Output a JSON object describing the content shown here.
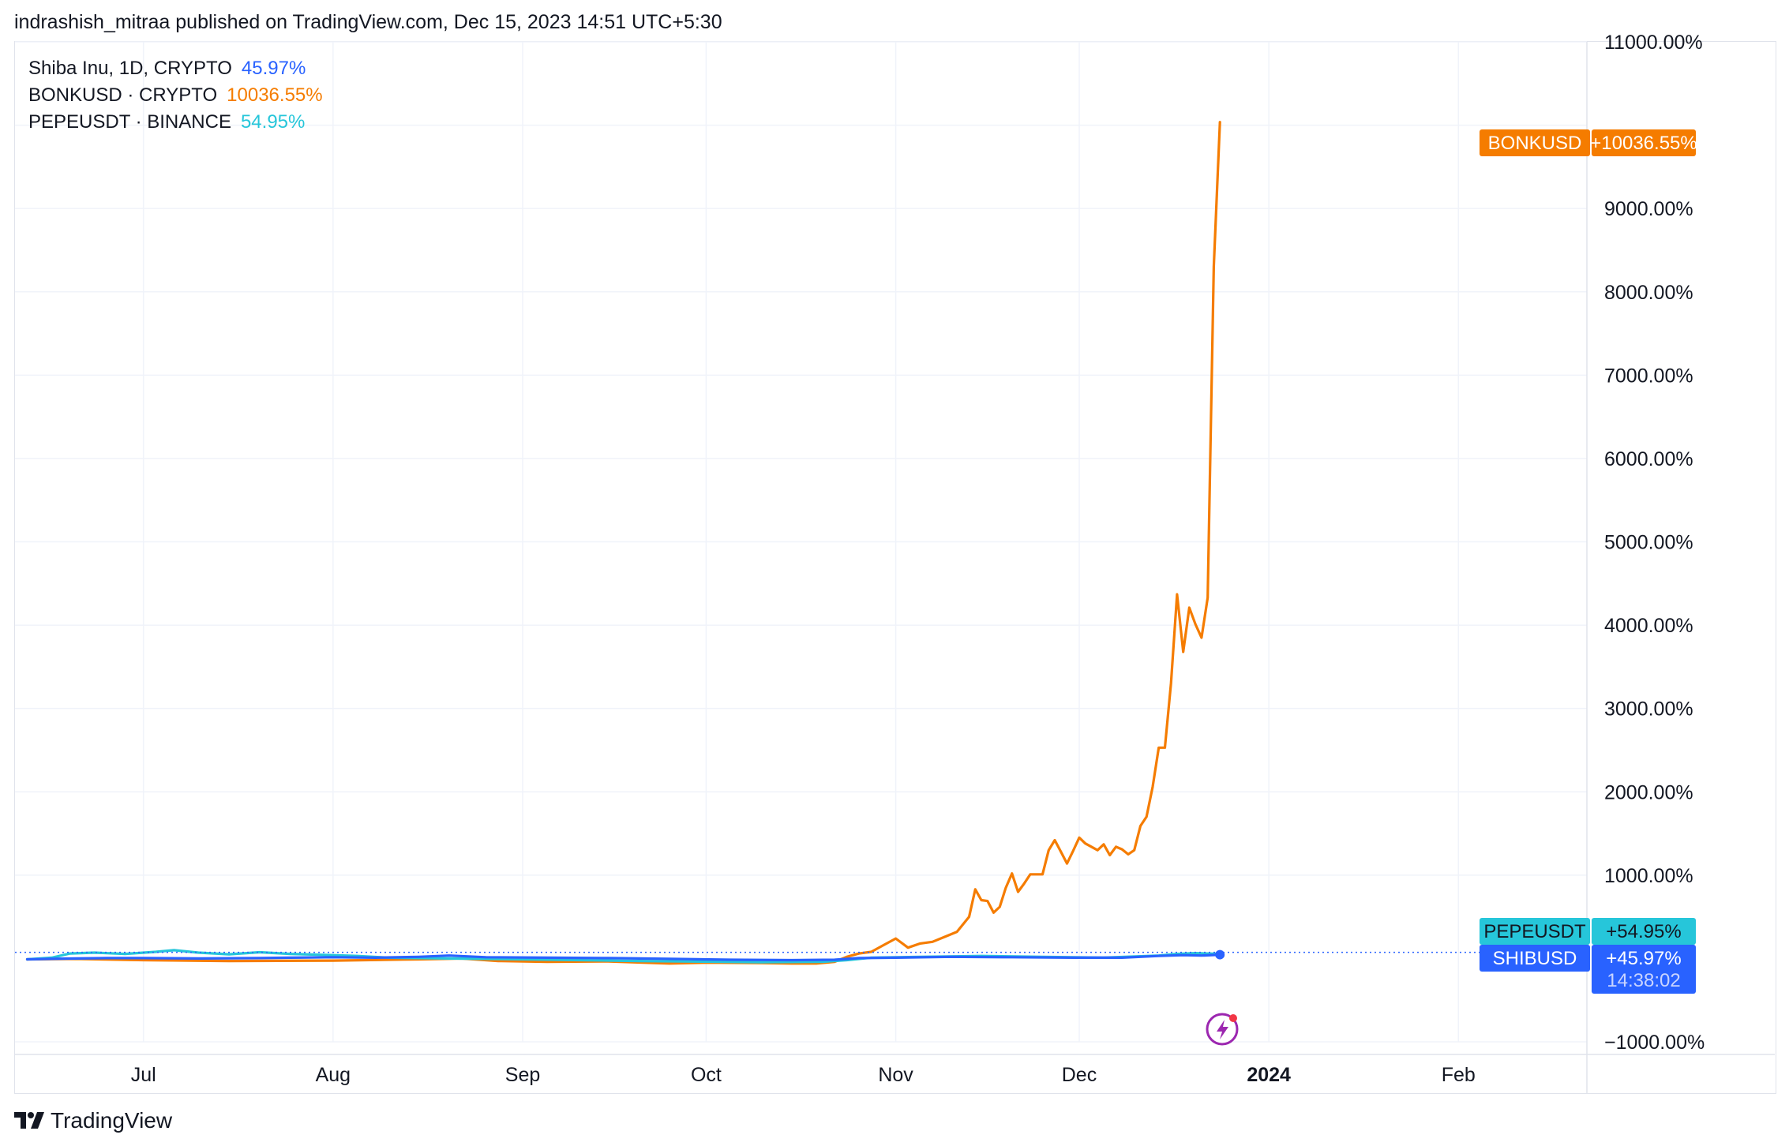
{
  "header": {
    "published_line": "indrashish_mitraa published on TradingView.com, Dec 15, 2023 14:51 UTC+5:30"
  },
  "legend": [
    {
      "label": "Shiba Inu, 1D, CRYPTO",
      "value": "45.97%",
      "color": "#2962ff"
    },
    {
      "label": "BONKUSD · CRYPTO",
      "value": "10036.55%",
      "color": "#f57c00"
    },
    {
      "label": "PEPEUSDT · BINANCE",
      "value": "54.95%",
      "color": "#26c6da"
    }
  ],
  "price_labels": {
    "bonk": {
      "name": "BONKUSD",
      "value": "+10036.55%",
      "color": "#f57c00"
    },
    "pepe": {
      "name": "PEPEUSDT",
      "value": "+54.95%",
      "color": "#26c6da"
    },
    "shib": {
      "name": "SHIBUSD",
      "value": "+45.97%",
      "countdown": "14:38:02",
      "color": "#2962ff"
    }
  },
  "footer": {
    "brand": "TradingView"
  },
  "chart_data": {
    "type": "line",
    "y_unit": "%",
    "ylim": [
      -1000,
      11000
    ],
    "xlim": [
      "2023-06-10",
      "2024-02-22"
    ],
    "y_ticks": [
      {
        "value": 11000,
        "label": "11000.00%"
      },
      {
        "value": 10000,
        "label": ""
      },
      {
        "value": 9000,
        "label": "9000.00%"
      },
      {
        "value": 8000,
        "label": "8000.00%"
      },
      {
        "value": 7000,
        "label": "7000.00%"
      },
      {
        "value": 6000,
        "label": "6000.00%"
      },
      {
        "value": 5000,
        "label": "5000.00%"
      },
      {
        "value": 4000,
        "label": "4000.00%"
      },
      {
        "value": 3000,
        "label": "3000.00%"
      },
      {
        "value": 2000,
        "label": "2000.00%"
      },
      {
        "value": 1000,
        "label": "1000.00%"
      },
      {
        "value": -1000,
        "label": "−1000.00%"
      }
    ],
    "x_ticks": [
      {
        "date": "2023-07-01",
        "label": "Jul",
        "bold": false
      },
      {
        "date": "2023-08-01",
        "label": "Aug",
        "bold": false
      },
      {
        "date": "2023-09-01",
        "label": "Sep",
        "bold": false
      },
      {
        "date": "2023-10-01",
        "label": "Oct",
        "bold": false
      },
      {
        "date": "2023-11-01",
        "label": "Nov",
        "bold": false
      },
      {
        "date": "2023-12-01",
        "label": "Dec",
        "bold": false
      },
      {
        "date": "2024-01-01",
        "label": "2024",
        "bold": true
      },
      {
        "date": "2024-02-01",
        "label": "Feb",
        "bold": false
      }
    ],
    "grid": true,
    "series": [
      {
        "name": "BONKUSD",
        "color": "#f57c00",
        "points": [
          [
            "2023-06-12",
            -10
          ],
          [
            "2023-06-20",
            -5
          ],
          [
            "2023-07-01",
            -20
          ],
          [
            "2023-07-15",
            -30
          ],
          [
            "2023-08-01",
            -25
          ],
          [
            "2023-08-15",
            -10
          ],
          [
            "2023-08-22",
            0
          ],
          [
            "2023-08-28",
            -30
          ],
          [
            "2023-09-05",
            -40
          ],
          [
            "2023-09-15",
            -35
          ],
          [
            "2023-09-25",
            -60
          ],
          [
            "2023-10-01",
            -50
          ],
          [
            "2023-10-10",
            -55
          ],
          [
            "2023-10-15",
            -60
          ],
          [
            "2023-10-19",
            -60
          ],
          [
            "2023-10-22",
            -40
          ],
          [
            "2023-10-24",
            20
          ],
          [
            "2023-10-26",
            60
          ],
          [
            "2023-10-28",
            80
          ],
          [
            "2023-10-30",
            160
          ],
          [
            "2023-11-01",
            240
          ],
          [
            "2023-11-03",
            130
          ],
          [
            "2023-11-05",
            180
          ],
          [
            "2023-11-07",
            200
          ],
          [
            "2023-11-09",
            260
          ],
          [
            "2023-11-11",
            320
          ],
          [
            "2023-11-13",
            500
          ],
          [
            "2023-11-14",
            830
          ],
          [
            "2023-11-15",
            700
          ],
          [
            "2023-11-16",
            690
          ],
          [
            "2023-11-17",
            550
          ],
          [
            "2023-11-18",
            620
          ],
          [
            "2023-11-19",
            850
          ],
          [
            "2023-11-20",
            1020
          ],
          [
            "2023-11-21",
            800
          ],
          [
            "2023-11-22",
            900
          ],
          [
            "2023-11-23",
            1010
          ],
          [
            "2023-11-25",
            1010
          ],
          [
            "2023-11-26",
            1300
          ],
          [
            "2023-11-27",
            1420
          ],
          [
            "2023-11-28",
            1280
          ],
          [
            "2023-11-29",
            1140
          ],
          [
            "2023-11-30",
            1290
          ],
          [
            "2023-12-01",
            1450
          ],
          [
            "2023-12-02",
            1380
          ],
          [
            "2023-12-04",
            1300
          ],
          [
            "2023-12-05",
            1370
          ],
          [
            "2023-12-06",
            1240
          ],
          [
            "2023-12-07",
            1340
          ],
          [
            "2023-12-08",
            1310
          ],
          [
            "2023-12-09",
            1250
          ],
          [
            "2023-12-10",
            1300
          ],
          [
            "2023-12-11",
            1590
          ],
          [
            "2023-12-12",
            1700
          ],
          [
            "2023-12-13",
            2060
          ],
          [
            "2023-12-14",
            2530
          ],
          [
            "2023-12-15",
            2530
          ],
          [
            "2023-12-16",
            3300
          ],
          [
            "2023-12-17",
            4370
          ],
          [
            "2023-12-18",
            3680
          ],
          [
            "2023-12-19",
            4210
          ],
          [
            "2023-12-20",
            4010
          ],
          [
            "2023-12-21",
            3850
          ],
          [
            "2023-12-22",
            4330
          ],
          [
            "2023-12-23",
            8300
          ],
          [
            "2023-12-24",
            10036.55
          ]
        ]
      },
      {
        "name": "PEPEUSDT",
        "color": "#26c6da",
        "points": [
          [
            "2023-06-12",
            -10
          ],
          [
            "2023-06-16",
            10
          ],
          [
            "2023-06-19",
            60
          ],
          [
            "2023-06-23",
            70
          ],
          [
            "2023-06-28",
            55
          ],
          [
            "2023-07-03",
            80
          ],
          [
            "2023-07-06",
            100
          ],
          [
            "2023-07-10",
            70
          ],
          [
            "2023-07-15",
            50
          ],
          [
            "2023-07-20",
            75
          ],
          [
            "2023-07-25",
            55
          ],
          [
            "2023-08-01",
            40
          ],
          [
            "2023-08-05",
            30
          ],
          [
            "2023-08-10",
            10
          ],
          [
            "2023-08-20",
            0
          ],
          [
            "2023-09-01",
            -10
          ],
          [
            "2023-09-20",
            -30
          ],
          [
            "2023-10-10",
            -45
          ],
          [
            "2023-10-20",
            -40
          ],
          [
            "2023-10-24",
            -20
          ],
          [
            "2023-10-28",
            10
          ],
          [
            "2023-11-05",
            20
          ],
          [
            "2023-11-15",
            30
          ],
          [
            "2023-11-25",
            20
          ],
          [
            "2023-12-05",
            10
          ],
          [
            "2023-12-14",
            35
          ],
          [
            "2023-12-17",
            55
          ],
          [
            "2023-12-20",
            65
          ],
          [
            "2023-12-24",
            54.95
          ]
        ]
      },
      {
        "name": "SHIBUSD",
        "color": "#2962ff",
        "points": [
          [
            "2023-06-12",
            -10
          ],
          [
            "2023-06-16",
            -5
          ],
          [
            "2023-06-20",
            0
          ],
          [
            "2023-06-25",
            5
          ],
          [
            "2023-07-01",
            5
          ],
          [
            "2023-07-10",
            0
          ],
          [
            "2023-07-20",
            5
          ],
          [
            "2023-07-25",
            10
          ],
          [
            "2023-08-01",
            15
          ],
          [
            "2023-08-08",
            10
          ],
          [
            "2023-08-15",
            20
          ],
          [
            "2023-08-20",
            35
          ],
          [
            "2023-08-26",
            15
          ],
          [
            "2023-09-05",
            10
          ],
          [
            "2023-09-15",
            5
          ],
          [
            "2023-09-25",
            -5
          ],
          [
            "2023-10-05",
            -15
          ],
          [
            "2023-10-15",
            -20
          ],
          [
            "2023-10-22",
            -15
          ],
          [
            "2023-10-26",
            5
          ],
          [
            "2023-11-01",
            10
          ],
          [
            "2023-11-10",
            20
          ],
          [
            "2023-11-20",
            15
          ],
          [
            "2023-11-30",
            10
          ],
          [
            "2023-12-08",
            10
          ],
          [
            "2023-12-14",
            30
          ],
          [
            "2023-12-18",
            40
          ],
          [
            "2023-12-21",
            35
          ],
          [
            "2023-12-24",
            45.97
          ]
        ]
      }
    ]
  }
}
